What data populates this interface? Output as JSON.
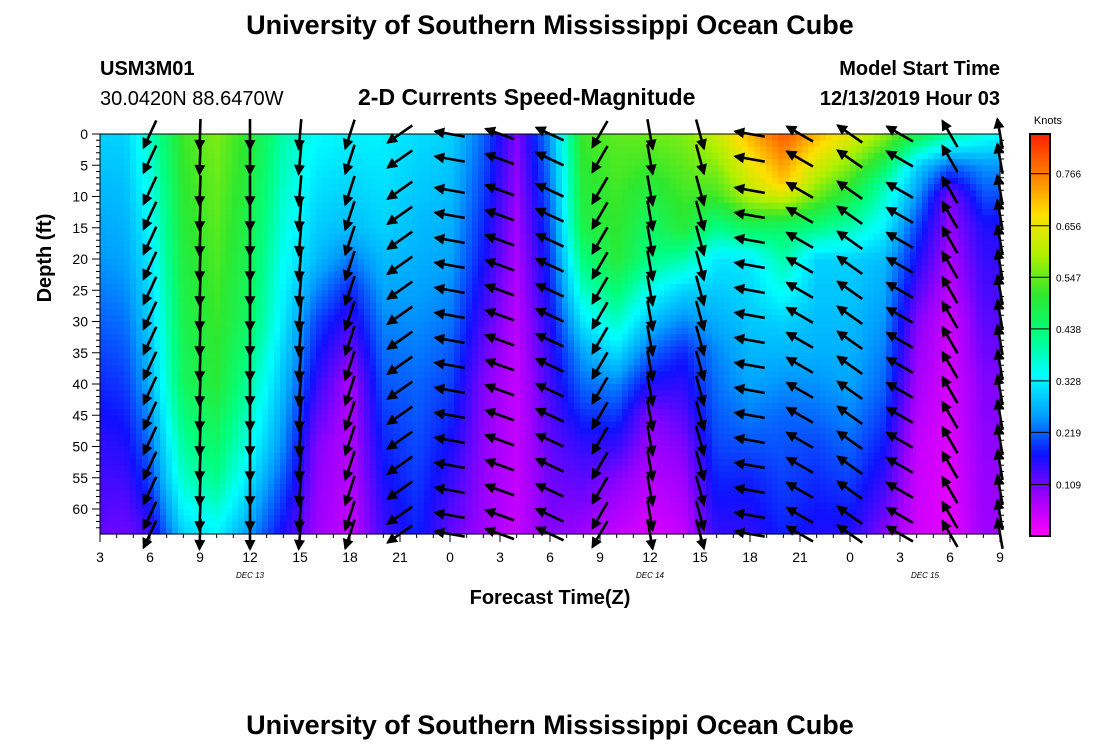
{
  "header": {
    "top_title": "University of Southern Mississippi Ocean Cube",
    "bottom_title": "University of Southern Mississippi Ocean Cube",
    "station_id": "USM3M01",
    "coordinates": "30.0420N 88.6470W",
    "model_start_label": "Model Start Time",
    "model_start_value": "12/13/2019 Hour 03"
  },
  "chart_data": {
    "type": "heatmap",
    "title": "2-D Currents Speed-Magnitude",
    "xlabel": "Forecast Time(Z)",
    "ylabel": "Depth (ft)",
    "x_tick_labels": [
      "3",
      "6",
      "9",
      "12",
      "15",
      "18",
      "21",
      "0",
      "3",
      "6",
      "9",
      "12",
      "15",
      "18",
      "21",
      "0",
      "3",
      "6",
      "9"
    ],
    "forecast_hours": [
      0,
      54
    ],
    "day_labels": [
      {
        "text": "DEC 13",
        "hour": 9
      },
      {
        "text": "DEC 14",
        "hour": 33
      },
      {
        "text": "DEC 15",
        "hour": 49.5
      }
    ],
    "y_ticks": [
      0,
      5,
      10,
      15,
      20,
      25,
      30,
      35,
      40,
      45,
      50,
      55,
      60
    ],
    "ylim": [
      0,
      64
    ],
    "colorbar": {
      "unit": "Knots",
      "range": [
        0.0,
        0.85
      ],
      "tick_values": [
        0.766,
        0.656,
        0.547,
        0.438,
        0.328,
        0.219,
        0.109
      ],
      "tick_labels": [
        "0.766",
        "0.656",
        "0.547",
        "0.438",
        "0.328",
        "0.219",
        "0.109"
      ]
    },
    "colormap": [
      "#ff00ff",
      "#9a00ff",
      "#1010ff",
      "#00a0ff",
      "#00ffff",
      "#00ff80",
      "#2ee82e",
      "#b0f000",
      "#ffe000",
      "#ff7d00",
      "#ff2000"
    ],
    "speed_profiles": [
      {
        "hour": 0,
        "speeds": [
          [
            0,
            0.3
          ],
          [
            20,
            0.25
          ],
          [
            50,
            0.15
          ],
          [
            64,
            0.12
          ]
        ]
      },
      {
        "hour": 1.5,
        "speeds": [
          [
            0,
            0.3
          ],
          [
            20,
            0.26
          ],
          [
            50,
            0.16
          ],
          [
            64,
            0.11
          ]
        ]
      },
      {
        "hour": 3,
        "speeds": [
          [
            0,
            0.38
          ],
          [
            20,
            0.32
          ],
          [
            40,
            0.27
          ],
          [
            55,
            0.2
          ],
          [
            64,
            0.14
          ]
        ]
      },
      {
        "hour": 5,
        "speeds": [
          [
            0,
            0.52
          ],
          [
            40,
            0.46
          ],
          [
            55,
            0.38
          ],
          [
            64,
            0.3
          ]
        ]
      },
      {
        "hour": 7,
        "speeds": [
          [
            0,
            0.56
          ],
          [
            40,
            0.5
          ],
          [
            55,
            0.42
          ],
          [
            64,
            0.33
          ]
        ]
      },
      {
        "hour": 9,
        "speeds": [
          [
            0,
            0.5
          ],
          [
            30,
            0.45
          ],
          [
            50,
            0.35
          ],
          [
            64,
            0.25
          ]
        ]
      },
      {
        "hour": 11,
        "speeds": [
          [
            0,
            0.4
          ],
          [
            30,
            0.32
          ],
          [
            50,
            0.24
          ],
          [
            64,
            0.16
          ]
        ]
      },
      {
        "hour": 13,
        "speeds": [
          [
            0,
            0.34
          ],
          [
            20,
            0.28
          ],
          [
            30,
            0.2
          ],
          [
            50,
            0.1
          ],
          [
            64,
            0.08
          ]
        ]
      },
      {
        "hour": 15,
        "speeds": [
          [
            0,
            0.33
          ],
          [
            15,
            0.28
          ],
          [
            25,
            0.18
          ],
          [
            40,
            0.07
          ],
          [
            64,
            0.05
          ]
        ]
      },
      {
        "hour": 17,
        "speeds": [
          [
            0,
            0.33
          ],
          [
            15,
            0.3
          ],
          [
            30,
            0.24
          ],
          [
            50,
            0.18
          ],
          [
            64,
            0.14
          ]
        ]
      },
      {
        "hour": 19,
        "speeds": [
          [
            0,
            0.31
          ],
          [
            20,
            0.27
          ],
          [
            40,
            0.22
          ],
          [
            64,
            0.18
          ]
        ]
      },
      {
        "hour": 21,
        "speeds": [
          [
            0,
            0.3
          ],
          [
            20,
            0.26
          ],
          [
            40,
            0.2
          ],
          [
            55,
            0.15
          ],
          [
            64,
            0.12
          ]
        ]
      },
      {
        "hour": 23,
        "speeds": [
          [
            0,
            0.22
          ],
          [
            20,
            0.17
          ],
          [
            40,
            0.1
          ],
          [
            64,
            0.08
          ]
        ]
      },
      {
        "hour": 25,
        "speeds": [
          [
            0,
            0.1
          ],
          [
            20,
            0.07
          ],
          [
            40,
            0.05
          ],
          [
            64,
            0.05
          ]
        ]
      },
      {
        "hour": 27,
        "speeds": [
          [
            0,
            0.25
          ],
          [
            10,
            0.22
          ],
          [
            30,
            0.16
          ],
          [
            50,
            0.12
          ],
          [
            64,
            0.1
          ]
        ]
      },
      {
        "hour": 29,
        "speeds": [
          [
            0,
            0.52
          ],
          [
            15,
            0.48
          ],
          [
            25,
            0.38
          ],
          [
            35,
            0.26
          ],
          [
            50,
            0.15
          ],
          [
            64,
            0.08
          ]
        ]
      },
      {
        "hour": 31,
        "speeds": [
          [
            0,
            0.54
          ],
          [
            20,
            0.5
          ],
          [
            30,
            0.38
          ],
          [
            40,
            0.24
          ],
          [
            55,
            0.1
          ],
          [
            64,
            0.05
          ]
        ]
      },
      {
        "hour": 33,
        "speeds": [
          [
            0,
            0.55
          ],
          [
            20,
            0.42
          ],
          [
            30,
            0.28
          ],
          [
            45,
            0.1
          ],
          [
            64,
            0.03
          ]
        ]
      },
      {
        "hour": 35,
        "speeds": [
          [
            0,
            0.56
          ],
          [
            15,
            0.5
          ],
          [
            25,
            0.3
          ],
          [
            35,
            0.18
          ],
          [
            50,
            0.1
          ],
          [
            64,
            0.05
          ]
        ]
      },
      {
        "hour": 37,
        "speeds": [
          [
            0,
            0.62
          ],
          [
            10,
            0.52
          ],
          [
            20,
            0.32
          ],
          [
            35,
            0.24
          ],
          [
            50,
            0.2
          ],
          [
            64,
            0.15
          ]
        ]
      },
      {
        "hour": 39,
        "speeds": [
          [
            0,
            0.72
          ],
          [
            10,
            0.6
          ],
          [
            20,
            0.32
          ],
          [
            40,
            0.26
          ],
          [
            55,
            0.18
          ],
          [
            64,
            0.15
          ]
        ]
      },
      {
        "hour": 41,
        "speeds": [
          [
            0,
            0.8
          ],
          [
            8,
            0.7
          ],
          [
            15,
            0.45
          ],
          [
            30,
            0.3
          ],
          [
            45,
            0.22
          ],
          [
            64,
            0.18
          ]
        ]
      },
      {
        "hour": 43,
        "speeds": [
          [
            0,
            0.72
          ],
          [
            10,
            0.55
          ],
          [
            20,
            0.3
          ],
          [
            35,
            0.27
          ],
          [
            50,
            0.2
          ],
          [
            64,
            0.16
          ]
        ]
      },
      {
        "hour": 45,
        "speeds": [
          [
            0,
            0.65
          ],
          [
            10,
            0.48
          ],
          [
            20,
            0.3
          ],
          [
            40,
            0.26
          ],
          [
            55,
            0.2
          ],
          [
            64,
            0.16
          ]
        ]
      },
      {
        "hour": 47,
        "speeds": [
          [
            0,
            0.58
          ],
          [
            8,
            0.4
          ],
          [
            20,
            0.28
          ],
          [
            40,
            0.22
          ],
          [
            55,
            0.15
          ],
          [
            64,
            0.1
          ]
        ]
      },
      {
        "hour": 49,
        "speeds": [
          [
            0,
            0.48
          ],
          [
            5,
            0.3
          ],
          [
            15,
            0.2
          ],
          [
            30,
            0.1
          ],
          [
            50,
            0.05
          ],
          [
            64,
            0.04
          ]
        ]
      },
      {
        "hour": 51,
        "speeds": [
          [
            0,
            0.4
          ],
          [
            5,
            0.22
          ],
          [
            10,
            0.1
          ],
          [
            30,
            0.04
          ],
          [
            64,
            0.02
          ]
        ]
      },
      {
        "hour": 53,
        "speeds": [
          [
            0,
            0.36
          ],
          [
            5,
            0.25
          ],
          [
            15,
            0.16
          ],
          [
            40,
            0.1
          ],
          [
            64,
            0.08
          ]
        ]
      },
      {
        "hour": 54,
        "speeds": [
          [
            0,
            0.34
          ],
          [
            5,
            0.25
          ],
          [
            15,
            0.16
          ],
          [
            40,
            0.1
          ],
          [
            64,
            0.08
          ]
        ]
      }
    ],
    "arrow_depths": [
      0,
      4,
      9,
      13,
      17,
      21,
      25,
      29,
      33,
      37,
      41,
      45,
      49,
      53,
      57,
      61,
      64
    ],
    "arrow_columns": [
      {
        "hour": 3,
        "angle": -115
      },
      {
        "hour": 6,
        "angle": -92
      },
      {
        "hour": 9,
        "angle": -90
      },
      {
        "hour": 12,
        "angle": -95
      },
      {
        "hour": 15,
        "angle": -108
      },
      {
        "hour": 18,
        "angle": -145
      },
      {
        "hour": 21,
        "angle": 170
      },
      {
        "hour": 24,
        "angle": 160
      },
      {
        "hour": 27,
        "angle": 155
      },
      {
        "hour": 30,
        "angle": -120
      },
      {
        "hour": 33,
        "angle": -80
      },
      {
        "hour": 36,
        "angle": -75
      },
      {
        "hour": 39,
        "angle": 170
      },
      {
        "hour": 42,
        "angle": 150
      },
      {
        "hour": 45,
        "angle": 145
      },
      {
        "hour": 48,
        "angle": 150
      },
      {
        "hour": 51,
        "angle": 120
      },
      {
        "hour": 54,
        "angle": 100
      }
    ]
  }
}
